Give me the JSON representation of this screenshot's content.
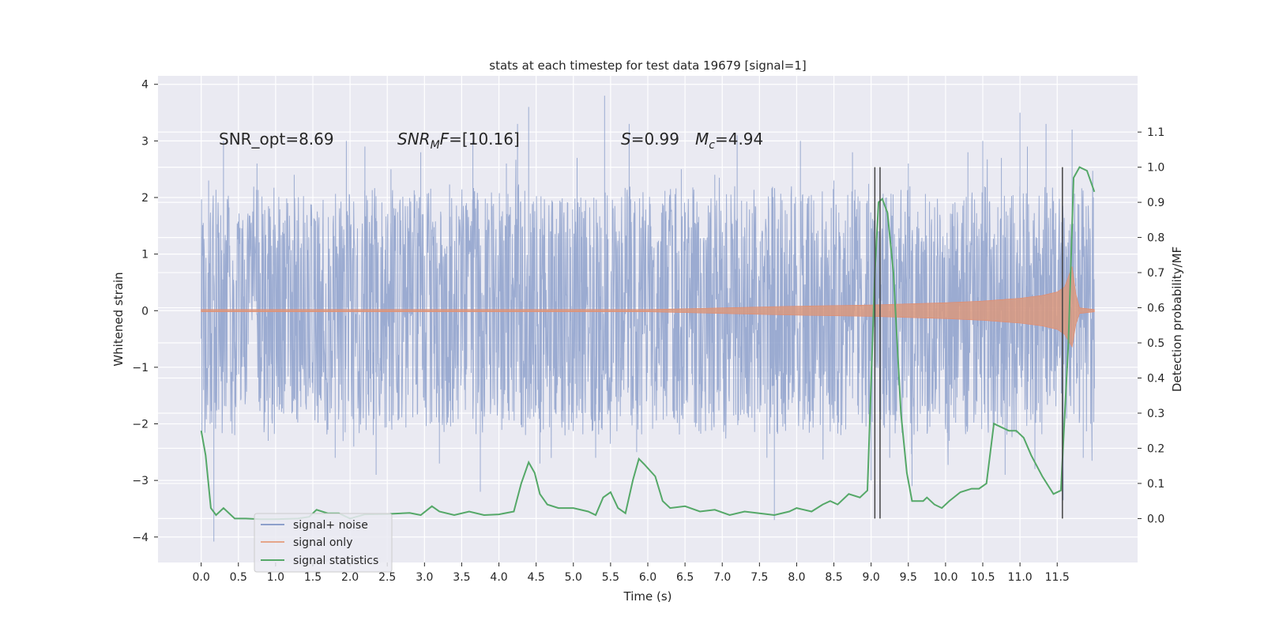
{
  "chart_data": {
    "type": "line",
    "title": "stats at each timestep for test data 19679 [signal=1]",
    "xlabel": "Time (s)",
    "ylabel": "Whitened strain",
    "ylabel_right": "Detection probability/MF",
    "xlim": [
      -0.58,
      12.58
    ],
    "ylim": [
      -4.45,
      4.15
    ],
    "ylim_right": [
      -0.125,
      1.26
    ],
    "x_ticks": [
      0.0,
      0.5,
      1.0,
      1.5,
      2.0,
      2.5,
      3.0,
      3.5,
      4.0,
      4.5,
      5.0,
      5.5,
      6.0,
      6.5,
      7.0,
      7.5,
      8.0,
      8.5,
      9.0,
      9.5,
      10.0,
      10.5,
      11.0,
      11.5
    ],
    "x_tick_labels": [
      "0.0",
      "0.5",
      "1.0",
      "1.5",
      "2.0",
      "2.5",
      "3.0",
      "3.5",
      "4.0",
      "4.5",
      "5.0",
      "5.5",
      "6.0",
      "6.5",
      "7.0",
      "7.5",
      "8.0",
      "8.5",
      "9.0",
      "9.5",
      "10.0",
      "10.5",
      "11.0",
      "11.5"
    ],
    "y_ticks": [
      -4,
      -3,
      -2,
      -1,
      0,
      1,
      2,
      3,
      4
    ],
    "y_tick_labels": [
      "−4",
      "−3",
      "−2",
      "−1",
      "0",
      "1",
      "2",
      "3",
      "4"
    ],
    "y_right_ticks": [
      0.0,
      0.1,
      0.2,
      0.3,
      0.4,
      0.5,
      0.6,
      0.7,
      0.8,
      0.9,
      1.0,
      1.1
    ],
    "y_right_tick_labels": [
      "0.0",
      "0.1",
      "0.2",
      "0.3",
      "0.4",
      "0.5",
      "0.6",
      "0.7",
      "0.8",
      "0.9",
      "1.0",
      "1.1"
    ],
    "grid": true,
    "legend_position": "lower-left",
    "series": [
      {
        "name": "signal+ noise",
        "color": "#8da0cb",
        "axis": "left",
        "x_range": [
          0.0,
          12.0
        ],
        "typical_range": [
          -1.6,
          1.6
        ],
        "spikes": [
          [
            0.1,
            2.3
          ],
          [
            0.12,
            -2.0
          ],
          [
            0.17,
            -4.08
          ],
          [
            0.3,
            3.0
          ],
          [
            0.45,
            -2.2
          ],
          [
            0.75,
            2.6
          ],
          [
            0.9,
            -2.3
          ],
          [
            1.25,
            2.4
          ],
          [
            1.8,
            -2.6
          ],
          [
            1.95,
            3.0
          ],
          [
            2.05,
            -2.4
          ],
          [
            2.2,
            2.9
          ],
          [
            2.35,
            -2.9
          ],
          [
            2.55,
            2.5
          ],
          [
            2.95,
            2.8
          ],
          [
            3.2,
            -2.7
          ],
          [
            3.65,
            3.0
          ],
          [
            3.75,
            -3.2
          ],
          [
            4.1,
            2.6
          ],
          [
            4.25,
            3.3
          ],
          [
            4.4,
            3.6
          ],
          [
            4.55,
            -2.7
          ],
          [
            5.05,
            2.7
          ],
          [
            5.3,
            -2.6
          ],
          [
            5.42,
            3.8
          ],
          [
            5.75,
            3.3
          ],
          [
            5.85,
            -2.5
          ],
          [
            6.45,
            2.5
          ],
          [
            6.9,
            2.4
          ],
          [
            7.2,
            3.1
          ],
          [
            7.6,
            -2.6
          ],
          [
            7.7,
            -3.7
          ],
          [
            8.05,
            3.0
          ],
          [
            8.5,
            2.3
          ],
          [
            8.75,
            2.8
          ],
          [
            9.0,
            -3.0
          ],
          [
            9.25,
            -2.6
          ],
          [
            9.5,
            2.6
          ],
          [
            9.55,
            -3.1
          ],
          [
            10.05,
            -2.3
          ],
          [
            10.3,
            2.8
          ],
          [
            10.5,
            3.0
          ],
          [
            10.75,
            2.7
          ],
          [
            10.8,
            -2.9
          ],
          [
            11.0,
            3.5
          ],
          [
            11.1,
            2.9
          ],
          [
            11.2,
            -2.8
          ],
          [
            11.35,
            3.3
          ],
          [
            11.58,
            -3.35
          ],
          [
            11.7,
            3.2
          ],
          [
            11.85,
            -2.6
          ],
          [
            11.95,
            -2.0
          ]
        ]
      },
      {
        "name": "signal only",
        "color": "#e5896a",
        "axis": "left",
        "points": [
          [
            0.0,
            0.02
          ],
          [
            6.0,
            0.02
          ],
          [
            7.0,
            0.05
          ],
          [
            8.0,
            0.08
          ],
          [
            9.0,
            0.1
          ],
          [
            10.0,
            0.14
          ],
          [
            10.5,
            0.17
          ],
          [
            11.0,
            0.22
          ],
          [
            11.3,
            0.27
          ],
          [
            11.5,
            0.33
          ],
          [
            11.6,
            0.42
          ],
          [
            11.7,
            0.78
          ],
          [
            11.75,
            0.3
          ],
          [
            11.8,
            0.05
          ],
          [
            12.0,
            0.02
          ]
        ]
      },
      {
        "name": "signal statistics",
        "color": "#55a868",
        "axis": "right",
        "points": [
          [
            0.0,
            0.25
          ],
          [
            0.06,
            0.18
          ],
          [
            0.13,
            0.03
          ],
          [
            0.2,
            0.01
          ],
          [
            0.3,
            0.03
          ],
          [
            0.45,
            0.0
          ],
          [
            0.6,
            0.0
          ],
          [
            0.8,
            -0.002
          ],
          [
            1.0,
            -0.002
          ],
          [
            1.3,
            0.0
          ],
          [
            1.45,
            0.005
          ],
          [
            1.55,
            0.025
          ],
          [
            1.7,
            0.015
          ],
          [
            1.85,
            0.015
          ],
          [
            2.0,
            0.0
          ],
          [
            2.2,
            0.012
          ],
          [
            2.5,
            0.013
          ],
          [
            2.8,
            0.016
          ],
          [
            2.95,
            0.01
          ],
          [
            3.1,
            0.035
          ],
          [
            3.2,
            0.02
          ],
          [
            3.4,
            0.01
          ],
          [
            3.6,
            0.02
          ],
          [
            3.8,
            0.01
          ],
          [
            4.0,
            0.012
          ],
          [
            4.2,
            0.02
          ],
          [
            4.3,
            0.1
          ],
          [
            4.4,
            0.16
          ],
          [
            4.48,
            0.13
          ],
          [
            4.55,
            0.07
          ],
          [
            4.65,
            0.04
          ],
          [
            4.8,
            0.03
          ],
          [
            5.0,
            0.03
          ],
          [
            5.2,
            0.02
          ],
          [
            5.3,
            0.01
          ],
          [
            5.4,
            0.06
          ],
          [
            5.5,
            0.075
          ],
          [
            5.6,
            0.03
          ],
          [
            5.7,
            0.015
          ],
          [
            5.8,
            0.11
          ],
          [
            5.88,
            0.17
          ],
          [
            5.95,
            0.155
          ],
          [
            6.1,
            0.12
          ],
          [
            6.2,
            0.05
          ],
          [
            6.3,
            0.03
          ],
          [
            6.5,
            0.035
          ],
          [
            6.7,
            0.02
          ],
          [
            6.9,
            0.025
          ],
          [
            7.1,
            0.01
          ],
          [
            7.3,
            0.02
          ],
          [
            7.5,
            0.015
          ],
          [
            7.7,
            0.01
          ],
          [
            7.9,
            0.02
          ],
          [
            8.0,
            0.03
          ],
          [
            8.2,
            0.02
          ],
          [
            8.35,
            0.04
          ],
          [
            8.45,
            0.05
          ],
          [
            8.55,
            0.04
          ],
          [
            8.7,
            0.07
          ],
          [
            8.85,
            0.06
          ],
          [
            8.95,
            0.08
          ],
          [
            9.05,
            0.7
          ],
          [
            9.1,
            0.9
          ],
          [
            9.15,
            0.91
          ],
          [
            9.22,
            0.87
          ],
          [
            9.3,
            0.7
          ],
          [
            9.4,
            0.3
          ],
          [
            9.48,
            0.13
          ],
          [
            9.55,
            0.05
          ],
          [
            9.7,
            0.05
          ],
          [
            9.75,
            0.06
          ],
          [
            9.85,
            0.04
          ],
          [
            9.95,
            0.03
          ],
          [
            10.05,
            0.05
          ],
          [
            10.2,
            0.075
          ],
          [
            10.35,
            0.085
          ],
          [
            10.45,
            0.085
          ],
          [
            10.55,
            0.1
          ],
          [
            10.65,
            0.27
          ],
          [
            10.75,
            0.26
          ],
          [
            10.85,
            0.25
          ],
          [
            10.95,
            0.25
          ],
          [
            11.05,
            0.23
          ],
          [
            11.15,
            0.18
          ],
          [
            11.3,
            0.12
          ],
          [
            11.45,
            0.07
          ],
          [
            11.55,
            0.08
          ],
          [
            11.65,
            0.5
          ],
          [
            11.72,
            0.97
          ],
          [
            11.8,
            1.0
          ],
          [
            11.9,
            0.99
          ],
          [
            12.0,
            0.93
          ]
        ]
      }
    ],
    "vertical_markers_x": [
      9.05,
      9.12,
      11.57
    ],
    "annotations": {
      "snr_opt": "SNR_opt=8.69",
      "snr_mf_var": "SNR",
      "snr_mf_sub": "M",
      "snr_mf_var2": "F",
      "snr_mf_value": "=[10.16]",
      "s_var": "S",
      "s_value": "=0.99",
      "mc_var": "M",
      "mc_sub": "c",
      "mc_value": "=4.94"
    },
    "legend": [
      "signal+ noise",
      "signal only",
      "signal statistics"
    ]
  }
}
